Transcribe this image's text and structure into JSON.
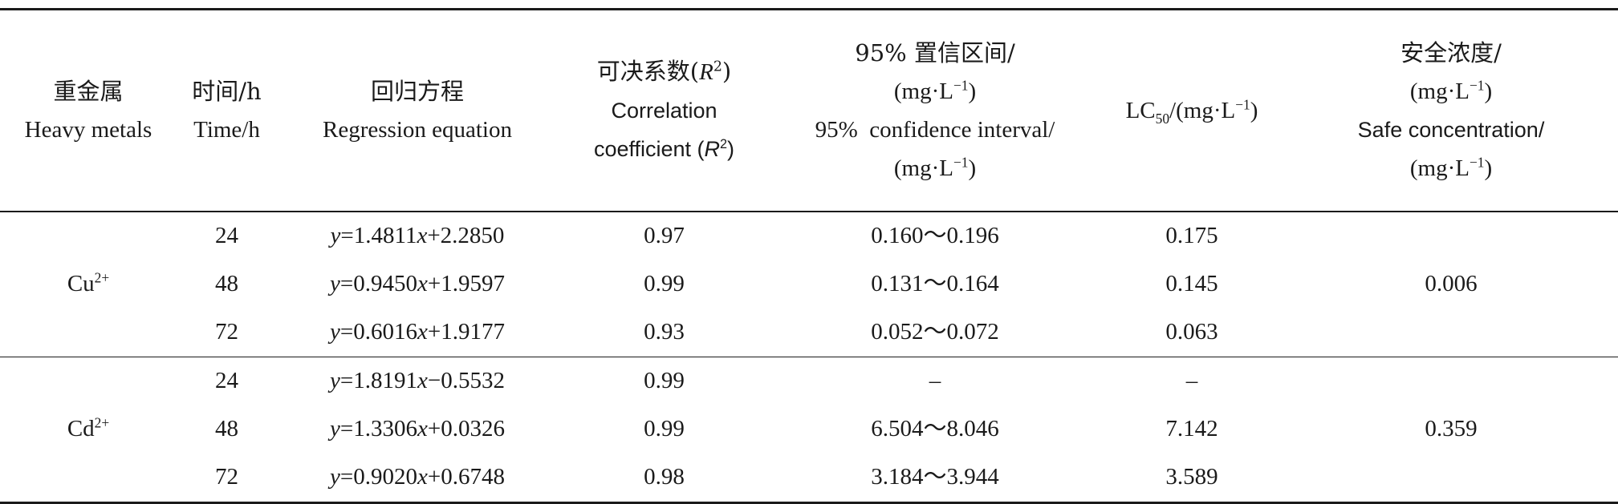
{
  "table": {
    "headers": {
      "metal": {
        "cn": "重金属",
        "en": "Heavy metals"
      },
      "time": {
        "cn": "时间/h",
        "en": "Time/h"
      },
      "equation": {
        "cn": "回归方程",
        "en": "Regression equation"
      },
      "r2": {
        "cn_prefix": "可决系数(",
        "cn_var": "R",
        "cn_sup": "2",
        "cn_suffix": ")",
        "en_line1": "Correlation",
        "en_prefix": "coefficient (",
        "en_var": "R",
        "en_sup": "2",
        "en_suffix": ")"
      },
      "ci": {
        "cn": "95% 置信区间/",
        "unit_open": "(mg·L",
        "unit_sup": "−1",
        "unit_close": ")",
        "en": "95%  confidence interval/"
      },
      "lc50": {
        "prefix": "LC",
        "sub": "50",
        "unit_open": "/(mg·L",
        "unit_sup": "−1",
        "unit_close": ")"
      },
      "safe": {
        "cn": "安全浓度/",
        "unit_open": "(mg·L",
        "unit_sup": "−1",
        "unit_close": ")",
        "en": "Safe concentration/"
      }
    },
    "groups": [
      {
        "metal_base": "Cu",
        "metal_sup": "2+",
        "safe": "0.006",
        "rows": [
          {
            "time": "24",
            "eq_lhs": "y",
            "eq_eq": "=1.4811",
            "eq_x": "x",
            "eq_rest": "+2.2850",
            "r2": "0.97",
            "ci": "0.160～0.196",
            "lc50": "0.175"
          },
          {
            "time": "48",
            "eq_lhs": "y",
            "eq_eq": "=0.9450",
            "eq_x": "x",
            "eq_rest": "+1.9597",
            "r2": "0.99",
            "ci": "0.131～0.164",
            "lc50": "0.145"
          },
          {
            "time": "72",
            "eq_lhs": "y",
            "eq_eq": "=0.6016",
            "eq_x": "x",
            "eq_rest": "+1.9177",
            "r2": "0.93",
            "ci": "0.052～0.072",
            "lc50": "0.063"
          }
        ]
      },
      {
        "metal_base": "Cd",
        "metal_sup": "2+",
        "safe": "0.359",
        "rows": [
          {
            "time": "24",
            "eq_lhs": "y",
            "eq_eq": "=1.8191",
            "eq_x": "x",
            "eq_rest": "−0.5532",
            "r2": "0.99",
            "ci": "–",
            "lc50": "–"
          },
          {
            "time": "48",
            "eq_lhs": "y",
            "eq_eq": "=1.3306",
            "eq_x": "x",
            "eq_rest": "+0.0326",
            "r2": "0.99",
            "ci": "6.504～8.046",
            "lc50": "7.142"
          },
          {
            "time": "72",
            "eq_lhs": "y",
            "eq_eq": "=0.9020",
            "eq_x": "x",
            "eq_rest": "+0.6748",
            "r2": "0.98",
            "ci": "3.184～3.944",
            "lc50": "3.589"
          }
        ]
      }
    ]
  }
}
